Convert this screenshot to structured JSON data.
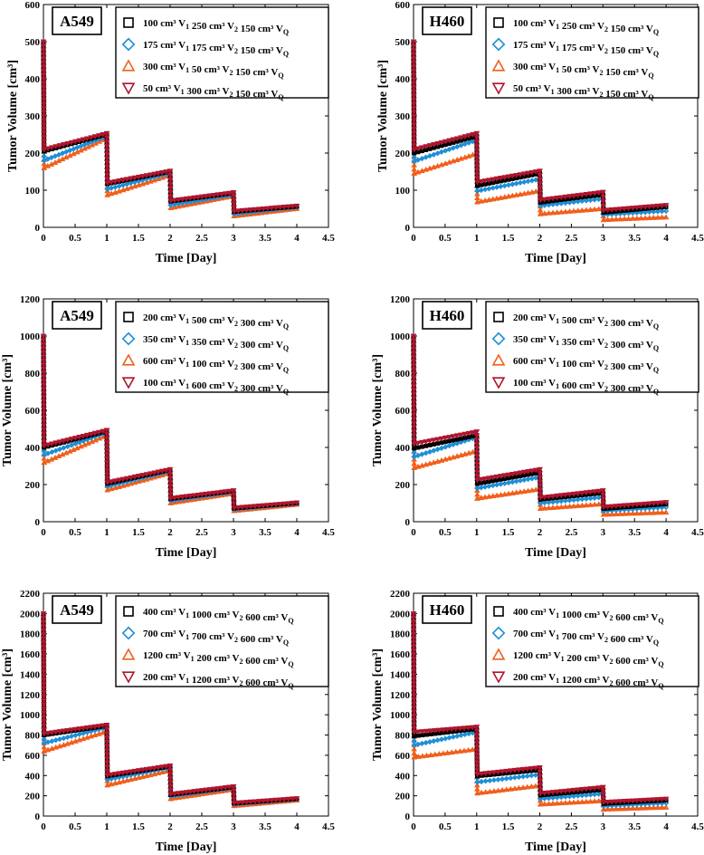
{
  "colors": {
    "black": "#000000",
    "blue": "#1f8fd6",
    "orange": "#f0601c",
    "crimson": "#b0152e"
  },
  "chart_data": [
    {
      "type": "line",
      "cell_line": "A549",
      "xlabel": "Time [Day]",
      "ylabel": "Tumor Volume [cm³]",
      "xlim": [
        0,
        4.5
      ],
      "ylim": [
        0,
        600
      ],
      "xticks": [
        0,
        0.5,
        1,
        1.5,
        2,
        2.5,
        3,
        3.5,
        4,
        4.5
      ],
      "yticks": [
        0,
        100,
        200,
        300,
        400,
        500,
        600
      ],
      "initial_volume": 500,
      "series": [
        {
          "marker": "square",
          "color": "#000000",
          "legend": [
            {
              "v": "100",
              "u": "V",
              "s": "1"
            },
            {
              "v": "250",
              "u": "V",
              "s": "2"
            },
            {
              "v": "150",
              "u": "V",
              "s": "Q"
            }
          ],
          "start": [
            205,
            117,
            70,
            42
          ],
          "end": [
            250,
            150,
            92,
            56
          ]
        },
        {
          "marker": "diamond",
          "color": "#1f8fd6",
          "legend": [
            {
              "v": "175",
              "u": "V",
              "s": "1"
            },
            {
              "v": "175",
              "u": "V",
              "s": "2"
            },
            {
              "v": "150",
              "u": "V",
              "s": "Q"
            }
          ],
          "start": [
            180,
            103,
            60,
            36
          ],
          "end": [
            246,
            146,
            88,
            54
          ]
        },
        {
          "marker": "triangle-up",
          "color": "#f0601c",
          "legend": [
            {
              "v": "300",
              "u": "V",
              "s": "1"
            },
            {
              "v": "50",
              "u": "V",
              "s": "2"
            },
            {
              "v": "150",
              "u": "V",
              "s": "Q"
            }
          ],
          "start": [
            160,
            87,
            52,
            30
          ],
          "end": [
            240,
            140,
            84,
            50
          ]
        },
        {
          "marker": "triangle-down",
          "color": "#b0152e",
          "legend": [
            {
              "v": "50",
              "u": "V",
              "s": "1"
            },
            {
              "v": "300",
              "u": "V",
              "s": "2"
            },
            {
              "v": "150",
              "u": "V",
              "s": "Q"
            }
          ],
          "start": [
            210,
            120,
            72,
            44
          ],
          "end": [
            253,
            152,
            94,
            58
          ]
        }
      ]
    },
    {
      "type": "line",
      "cell_line": "H460",
      "xlabel": "Time [Day]",
      "ylabel": "Tumor Volume [cm³]",
      "xlim": [
        0,
        4.5
      ],
      "ylim": [
        0,
        600
      ],
      "xticks": [
        0,
        0.5,
        1,
        1.5,
        2,
        2.5,
        3,
        3.5,
        4,
        4.5
      ],
      "yticks": [
        0,
        100,
        200,
        300,
        400,
        500,
        600
      ],
      "initial_volume": 500,
      "series": [
        {
          "marker": "square",
          "color": "#000000",
          "legend": [
            {
              "v": "100",
              "u": "V",
              "s": "1"
            },
            {
              "v": "250",
              "u": "V",
              "s": "2"
            },
            {
              "v": "150",
              "u": "V",
              "s": "Q"
            }
          ],
          "start": [
            200,
            112,
            67,
            40
          ],
          "end": [
            245,
            145,
            88,
            55
          ]
        },
        {
          "marker": "diamond",
          "color": "#1f8fd6",
          "legend": [
            {
              "v": "175",
              "u": "V",
              "s": "1"
            },
            {
              "v": "175",
              "u": "V",
              "s": "2"
            },
            {
              "v": "150",
              "u": "V",
              "s": "Q"
            }
          ],
          "start": [
            178,
            98,
            58,
            34
          ],
          "end": [
            235,
            130,
            77,
            44
          ]
        },
        {
          "marker": "triangle-up",
          "color": "#f0601c",
          "legend": [
            {
              "v": "300",
              "u": "V",
              "s": "1"
            },
            {
              "v": "50",
              "u": "V",
              "s": "2"
            },
            {
              "v": "150",
              "u": "V",
              "s": "Q"
            }
          ],
          "start": [
            145,
            68,
            36,
            20
          ],
          "end": [
            198,
            98,
            50,
            27
          ]
        },
        {
          "marker": "triangle-down",
          "color": "#b0152e",
          "legend": [
            {
              "v": "50",
              "u": "V",
              "s": "1"
            },
            {
              "v": "300",
              "u": "V",
              "s": "2"
            },
            {
              "v": "150",
              "u": "V",
              "s": "Q"
            }
          ],
          "start": [
            210,
            122,
            74,
            46
          ],
          "end": [
            253,
            152,
            95,
            60
          ]
        }
      ]
    },
    {
      "type": "line",
      "cell_line": "A549",
      "xlabel": "Time [Day]",
      "ylabel": "Tumor Volume [cm³]",
      "xlim": [
        0,
        4.5
      ],
      "ylim": [
        0,
        1200
      ],
      "xticks": [
        0,
        0.5,
        1,
        1.5,
        2,
        2.5,
        3,
        3.5,
        4,
        4.5
      ],
      "yticks": [
        0,
        200,
        400,
        600,
        800,
        1000,
        1200
      ],
      "initial_volume": 1000,
      "series": [
        {
          "marker": "square",
          "color": "#000000",
          "legend": [
            {
              "v": "200",
              "u": "V",
              "s": "1"
            },
            {
              "v": "500",
              "u": "V",
              "s": "2"
            },
            {
              "v": "300",
              "u": "V",
              "s": "Q"
            }
          ],
          "start": [
            400,
            205,
            123,
            72
          ],
          "end": [
            487,
            278,
            165,
            100
          ]
        },
        {
          "marker": "diamond",
          "color": "#1f8fd6",
          "legend": [
            {
              "v": "350",
              "u": "V",
              "s": "1"
            },
            {
              "v": "350",
              "u": "V",
              "s": "2"
            },
            {
              "v": "300",
              "u": "V",
              "s": "Q"
            }
          ],
          "start": [
            360,
            190,
            113,
            66
          ],
          "end": [
            480,
            272,
            160,
            97
          ]
        },
        {
          "marker": "triangle-up",
          "color": "#f0601c",
          "legend": [
            {
              "v": "600",
              "u": "V",
              "s": "1"
            },
            {
              "v": "100",
              "u": "V",
              "s": "2"
            },
            {
              "v": "300",
              "u": "V",
              "s": "Q"
            }
          ],
          "start": [
            318,
            170,
            100,
            58
          ],
          "end": [
            465,
            262,
            152,
            92
          ]
        },
        {
          "marker": "triangle-down",
          "color": "#b0152e",
          "legend": [
            {
              "v": "100",
              "u": "V",
              "s": "1"
            },
            {
              "v": "600",
              "u": "V",
              "s": "2"
            },
            {
              "v": "300",
              "u": "V",
              "s": "Q"
            }
          ],
          "start": [
            410,
            212,
            127,
            75
          ],
          "end": [
            493,
            282,
            168,
            103
          ]
        }
      ]
    },
    {
      "type": "line",
      "cell_line": "H460",
      "xlabel": "Time [Day]",
      "ylabel": "Tumor Volume [cm³]",
      "xlim": [
        0,
        4.5
      ],
      "ylim": [
        0,
        1200
      ],
      "xticks": [
        0,
        0.5,
        1,
        1.5,
        2,
        2.5,
        3,
        3.5,
        4,
        4.5
      ],
      "yticks": [
        0,
        200,
        400,
        600,
        800,
        1000,
        1200
      ],
      "initial_volume": 1000,
      "series": [
        {
          "marker": "square",
          "color": "#000000",
          "legend": [
            {
              "v": "200",
              "u": "V",
              "s": "1"
            },
            {
              "v": "500",
              "u": "V",
              "s": "2"
            },
            {
              "v": "300",
              "u": "V",
              "s": "Q"
            }
          ],
          "start": [
            395,
            205,
            120,
            70
          ],
          "end": [
            465,
            265,
            155,
            95
          ]
        },
        {
          "marker": "diamond",
          "color": "#1f8fd6",
          "legend": [
            {
              "v": "350",
              "u": "V",
              "s": "1"
            },
            {
              "v": "350",
              "u": "V",
              "s": "2"
            },
            {
              "v": "300",
              "u": "V",
              "s": "Q"
            }
          ],
          "start": [
            350,
            180,
            100,
            58
          ],
          "end": [
            455,
            240,
            132,
            78
          ]
        },
        {
          "marker": "triangle-up",
          "color": "#f0601c",
          "legend": [
            {
              "v": "600",
              "u": "V",
              "s": "1"
            },
            {
              "v": "100",
              "u": "V",
              "s": "2"
            },
            {
              "v": "300",
              "u": "V",
              "s": "Q"
            }
          ],
          "start": [
            290,
            125,
            70,
            38
          ],
          "end": [
            380,
            175,
            95,
            50
          ]
        },
        {
          "marker": "triangle-down",
          "color": "#b0152e",
          "legend": [
            {
              "v": "100",
              "u": "V",
              "s": "1"
            },
            {
              "v": "600",
              "u": "V",
              "s": "2"
            },
            {
              "v": "300",
              "u": "V",
              "s": "Q"
            }
          ],
          "start": [
            420,
            225,
            130,
            80
          ],
          "end": [
            485,
            282,
            168,
            105
          ]
        }
      ]
    },
    {
      "type": "line",
      "cell_line": "A549",
      "xlabel": "Time [Day]",
      "ylabel": "Tumor Volume [cm³]",
      "xlim": [
        0,
        4.5
      ],
      "ylim": [
        0,
        2200
      ],
      "xticks": [
        0,
        0.5,
        1,
        1.5,
        2,
        2.5,
        3,
        3.5,
        4,
        4.5
      ],
      "yticks": [
        0,
        200,
        400,
        600,
        800,
        1000,
        1200,
        1400,
        1600,
        1800,
        2000,
        2200
      ],
      "initial_volume": 2000,
      "series": [
        {
          "marker": "square",
          "color": "#000000",
          "legend": [
            {
              "v": "400",
              "u": "V",
              "s": "1"
            },
            {
              "v": "1000",
              "u": "V",
              "s": "2"
            },
            {
              "v": "600",
              "u": "V",
              "s": "Q"
            }
          ],
          "start": [
            800,
            395,
            210,
            125
          ],
          "end": [
            890,
            490,
            285,
            170
          ]
        },
        {
          "marker": "diamond",
          "color": "#1f8fd6",
          "legend": [
            {
              "v": "700",
              "u": "V",
              "s": "1"
            },
            {
              "v": "700",
              "u": "V",
              "s": "2"
            },
            {
              "v": "600",
              "u": "V",
              "s": "Q"
            }
          ],
          "start": [
            720,
            360,
            195,
            115
          ],
          "end": [
            875,
            478,
            278,
            165
          ]
        },
        {
          "marker": "triangle-up",
          "color": "#f0601c",
          "legend": [
            {
              "v": "1200",
              "u": "V",
              "s": "1"
            },
            {
              "v": "200",
              "u": "V",
              "s": "2"
            },
            {
              "v": "600",
              "u": "V",
              "s": "Q"
            }
          ],
          "start": [
            640,
            305,
            170,
            100
          ],
          "end": [
            835,
            450,
            262,
            155
          ]
        },
        {
          "marker": "triangle-down",
          "color": "#b0152e",
          "legend": [
            {
              "v": "200",
              "u": "V",
              "s": "1"
            },
            {
              "v": "1200",
              "u": "V",
              "s": "2"
            },
            {
              "v": "600",
              "u": "V",
              "s": "Q"
            }
          ],
          "start": [
            815,
            405,
            218,
            130
          ],
          "end": [
            900,
            498,
            292,
            175
          ]
        }
      ]
    },
    {
      "type": "line",
      "cell_line": "H460",
      "xlabel": "Time [Day]",
      "ylabel": "Tumor Volume [cm³]",
      "xlim": [
        0,
        4.5
      ],
      "ylim": [
        0,
        2200
      ],
      "xticks": [
        0,
        0.5,
        1,
        1.5,
        2,
        2.5,
        3,
        3.5,
        4,
        4.5
      ],
      "yticks": [
        0,
        200,
        400,
        600,
        800,
        1000,
        1200,
        1400,
        1600,
        1800,
        2000,
        2200
      ],
      "initial_volume": 2000,
      "series": [
        {
          "marker": "square",
          "color": "#000000",
          "legend": [
            {
              "v": "400",
              "u": "V",
              "s": "1"
            },
            {
              "v": "1000",
              "u": "V",
              "s": "2"
            },
            {
              "v": "600",
              "u": "V",
              "s": "Q"
            }
          ],
          "start": [
            790,
            395,
            205,
            122
          ],
          "end": [
            860,
            455,
            260,
            155
          ]
        },
        {
          "marker": "diamond",
          "color": "#1f8fd6",
          "legend": [
            {
              "v": "700",
              "u": "V",
              "s": "1"
            },
            {
              "v": "700",
              "u": "V",
              "s": "2"
            },
            {
              "v": "600",
              "u": "V",
              "s": "Q"
            }
          ],
          "start": [
            700,
            335,
            170,
            100
          ],
          "end": [
            830,
            410,
            220,
            128
          ]
        },
        {
          "marker": "triangle-up",
          "color": "#f0601c",
          "legend": [
            {
              "v": "1200",
              "u": "V",
              "s": "1"
            },
            {
              "v": "200",
              "u": "V",
              "s": "2"
            },
            {
              "v": "600",
              "u": "V",
              "s": "Q"
            }
          ],
          "start": [
            580,
            225,
            115,
            65
          ],
          "end": [
            660,
            300,
            150,
            85
          ]
        },
        {
          "marker": "triangle-down",
          "color": "#b0152e",
          "legend": [
            {
              "v": "200",
              "u": "V",
              "s": "1"
            },
            {
              "v": "1200",
              "u": "V",
              "s": "2"
            },
            {
              "v": "600",
              "u": "V",
              "s": "Q"
            }
          ],
          "start": [
            830,
            415,
            225,
            138
          ],
          "end": [
            880,
            480,
            285,
            170
          ]
        }
      ]
    }
  ]
}
